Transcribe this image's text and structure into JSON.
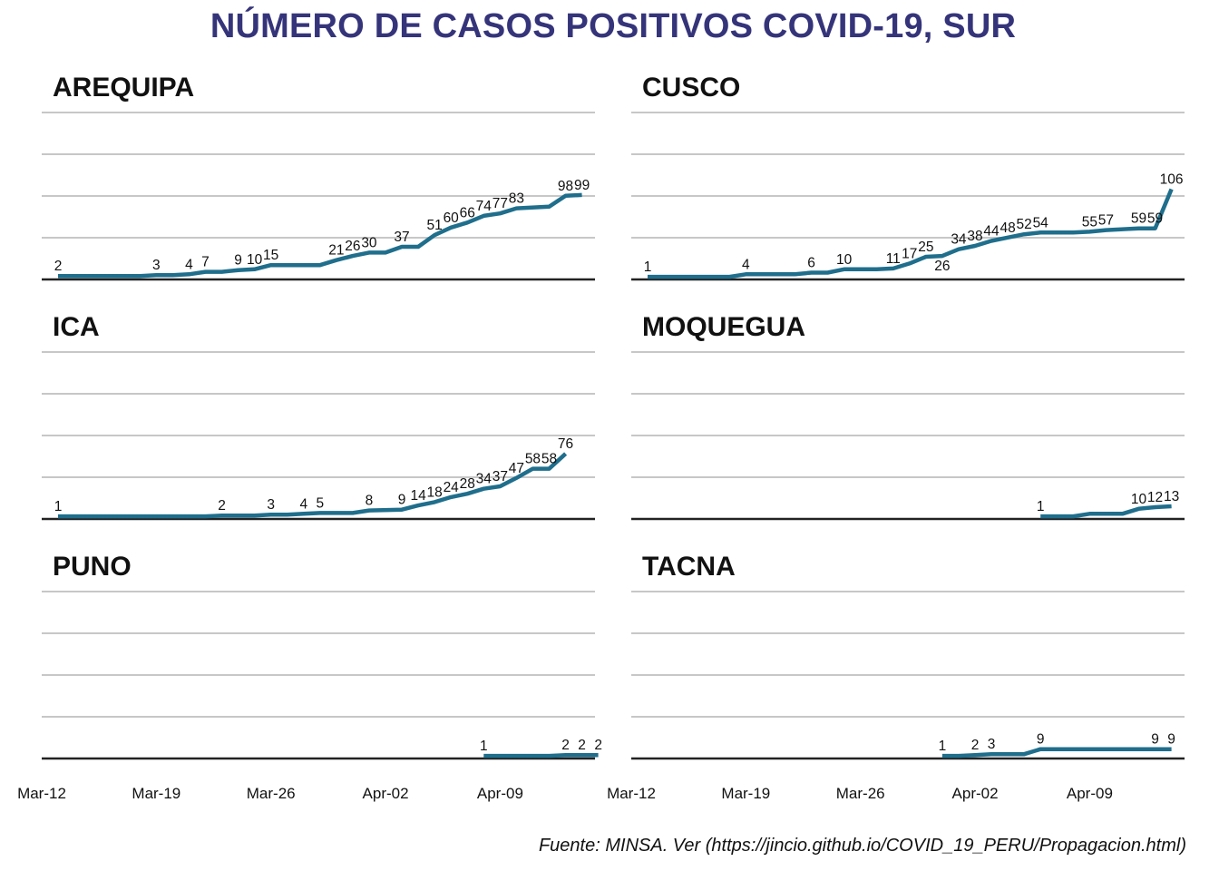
{
  "title": "NÚMERO DE CASOS POSITIVOS COVID-19, SUR",
  "caption": "Fuente: MINSA. Ver (https://jincio.github.io/COVID_19_PERU/Propagacion.html)",
  "colors": {
    "line": "#1f6e8c",
    "grid": "#c7c7c7",
    "baseline": "#222222",
    "title": "#35347a",
    "text": "#111111"
  },
  "chart_data": {
    "type": "line",
    "x_start_date": "Mar-12",
    "x_ticks": [
      {
        "label": "Mar-12",
        "day": 0
      },
      {
        "label": "Mar-19",
        "day": 7
      },
      {
        "label": "Mar-26",
        "day": 14
      },
      {
        "label": "Apr-02",
        "day": 21
      },
      {
        "label": "Apr-09",
        "day": 28
      }
    ],
    "x_range": [
      0,
      35
    ],
    "y_range": [
      0,
      200
    ],
    "grid": true,
    "panels": [
      {
        "name": "AREQUIPA",
        "points": [
          {
            "day": 0,
            "value": 2,
            "label": "2"
          },
          {
            "day": 5,
            "value": 2
          },
          {
            "day": 6,
            "value": 3,
            "label": "3"
          },
          {
            "day": 7,
            "value": 3
          },
          {
            "day": 8,
            "value": 4,
            "label": "4"
          },
          {
            "day": 9,
            "value": 7,
            "label": "7"
          },
          {
            "day": 10,
            "value": 7
          },
          {
            "day": 11,
            "value": 9,
            "label": "9"
          },
          {
            "day": 12,
            "value": 10,
            "label": "10"
          },
          {
            "day": 13,
            "value": 15,
            "label": "15"
          },
          {
            "day": 16,
            "value": 15
          },
          {
            "day": 17,
            "value": 21,
            "label": "21"
          },
          {
            "day": 18,
            "value": 26,
            "label": "26"
          },
          {
            "day": 19,
            "value": 30,
            "label": "30"
          },
          {
            "day": 20,
            "value": 30
          },
          {
            "day": 21,
            "value": 37,
            "label": "37"
          },
          {
            "day": 22,
            "value": 37
          },
          {
            "day": 23,
            "value": 51,
            "label": "51"
          },
          {
            "day": 24,
            "value": 60,
            "label": "60"
          },
          {
            "day": 25,
            "value": 66,
            "label": "66"
          },
          {
            "day": 26,
            "value": 74,
            "label": "74"
          },
          {
            "day": 27,
            "value": 77,
            "label": "77"
          },
          {
            "day": 28,
            "value": 83,
            "label": "83"
          },
          {
            "day": 30,
            "value": 85
          },
          {
            "day": 31,
            "value": 98,
            "label": "98"
          },
          {
            "day": 32,
            "value": 99,
            "label": "99"
          }
        ]
      },
      {
        "name": "CUSCO",
        "points": [
          {
            "day": 0,
            "value": 1,
            "label": "1"
          },
          {
            "day": 5,
            "value": 1
          },
          {
            "day": 6,
            "value": 4,
            "label": "4"
          },
          {
            "day": 9,
            "value": 4
          },
          {
            "day": 10,
            "value": 6,
            "label": "6"
          },
          {
            "day": 11,
            "value": 6
          },
          {
            "day": 12,
            "value": 10,
            "label": "10"
          },
          {
            "day": 14,
            "value": 10
          },
          {
            "day": 15,
            "value": 11,
            "label": "11"
          },
          {
            "day": 16,
            "value": 17,
            "label": "17"
          },
          {
            "day": 17,
            "value": 25,
            "label": "25"
          },
          {
            "day": 18,
            "value": 26,
            "label": "26",
            "below": true
          },
          {
            "day": 19,
            "value": 34,
            "label": "34"
          },
          {
            "day": 20,
            "value": 38,
            "label": "38"
          },
          {
            "day": 21,
            "value": 44,
            "label": "44"
          },
          {
            "day": 22,
            "value": 48,
            "label": "48"
          },
          {
            "day": 23,
            "value": 52,
            "label": "52"
          },
          {
            "day": 24,
            "value": 54,
            "label": "54"
          },
          {
            "day": 26,
            "value": 54
          },
          {
            "day": 27,
            "value": 55,
            "label": "55"
          },
          {
            "day": 28,
            "value": 57,
            "label": "57"
          },
          {
            "day": 30,
            "value": 59,
            "label": "59"
          },
          {
            "day": 31,
            "value": 59,
            "label": "59"
          },
          {
            "day": 32,
            "value": 106,
            "label": "106"
          }
        ]
      },
      {
        "name": "ICA",
        "points": [
          {
            "day": 0,
            "value": 1,
            "label": "1"
          },
          {
            "day": 9,
            "value": 1
          },
          {
            "day": 10,
            "value": 2,
            "label": "2"
          },
          {
            "day": 12,
            "value": 2
          },
          {
            "day": 13,
            "value": 3,
            "label": "3"
          },
          {
            "day": 14,
            "value": 3
          },
          {
            "day": 15,
            "value": 4,
            "label": "4"
          },
          {
            "day": 16,
            "value": 5,
            "label": "5"
          },
          {
            "day": 18,
            "value": 5
          },
          {
            "day": 19,
            "value": 8,
            "label": "8"
          },
          {
            "day": 21,
            "value": 9,
            "label": "9"
          },
          {
            "day": 22,
            "value": 14,
            "label": "14"
          },
          {
            "day": 23,
            "value": 18,
            "label": "18"
          },
          {
            "day": 24,
            "value": 24,
            "label": "24"
          },
          {
            "day": 25,
            "value": 28,
            "label": "28"
          },
          {
            "day": 26,
            "value": 34,
            "label": "34"
          },
          {
            "day": 27,
            "value": 37,
            "label": "37"
          },
          {
            "day": 28,
            "value": 47,
            "label": "47"
          },
          {
            "day": 29,
            "value": 58,
            "label": "58"
          },
          {
            "day": 30,
            "value": 58,
            "label": "58"
          },
          {
            "day": 31,
            "value": 76,
            "label": "76"
          }
        ]
      },
      {
        "name": "MOQUEGUA",
        "points": [
          {
            "day": 24,
            "value": 1,
            "label": "1"
          },
          {
            "day": 26,
            "value": 1
          },
          {
            "day": 27,
            "value": 4
          },
          {
            "day": 29,
            "value": 4
          },
          {
            "day": 30,
            "value": 10,
            "label": "10"
          },
          {
            "day": 31,
            "value": 12,
            "label": "12"
          },
          {
            "day": 32,
            "value": 13,
            "label": "13"
          }
        ]
      },
      {
        "name": "PUNO",
        "points": [
          {
            "day": 26,
            "value": 1,
            "label": "1"
          },
          {
            "day": 30,
            "value": 1
          },
          {
            "day": 31,
            "value": 2,
            "label": "2"
          },
          {
            "day": 32,
            "value": 2,
            "label": "2"
          },
          {
            "day": 33,
            "value": 2,
            "label": "2"
          }
        ]
      },
      {
        "name": "TACNA",
        "points": [
          {
            "day": 18,
            "value": 1,
            "label": "1"
          },
          {
            "day": 19,
            "value": 1
          },
          {
            "day": 20,
            "value": 2,
            "label": "2"
          },
          {
            "day": 21,
            "value": 3,
            "label": "3"
          },
          {
            "day": 23,
            "value": 3
          },
          {
            "day": 24,
            "value": 9,
            "label": "9"
          },
          {
            "day": 31,
            "value": 9,
            "label": "9"
          },
          {
            "day": 32,
            "value": 9,
            "label": "9"
          }
        ]
      }
    ]
  }
}
